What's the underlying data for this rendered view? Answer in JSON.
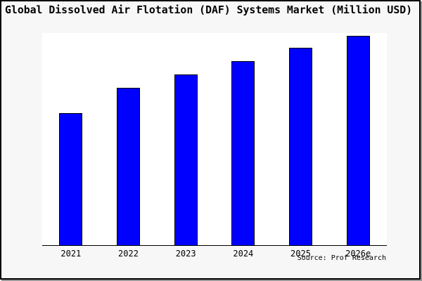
{
  "figure": {
    "title": "Global Dissolved Air Flotation (DAF) Systems Market (Million USD)",
    "source": "Source: Prof Research"
  },
  "chart_data": {
    "type": "bar",
    "title": "Global Dissolved Air Flotation (DAF) Systems Market (Million USD)",
    "xlabel": "",
    "ylabel": "",
    "unit": "Million USD",
    "categories": [
      "2021",
      "2022",
      "2023",
      "2024",
      "2025",
      "2026e"
    ],
    "values_pct_of_max": [
      63,
      75.2,
      81.6,
      88,
      94.1,
      100
    ],
    "note_last_category_is_estimate": "2026e",
    "y_axis_ticks_visible": false,
    "gridlines": false,
    "legend": "none",
    "bar_color": "#0000ff",
    "bar_border_color": "#000000",
    "axis_color": "#000000",
    "plot_background": "#ffffff",
    "figure_background": "#f7f7f7",
    "source": "Source: Prof Research"
  }
}
